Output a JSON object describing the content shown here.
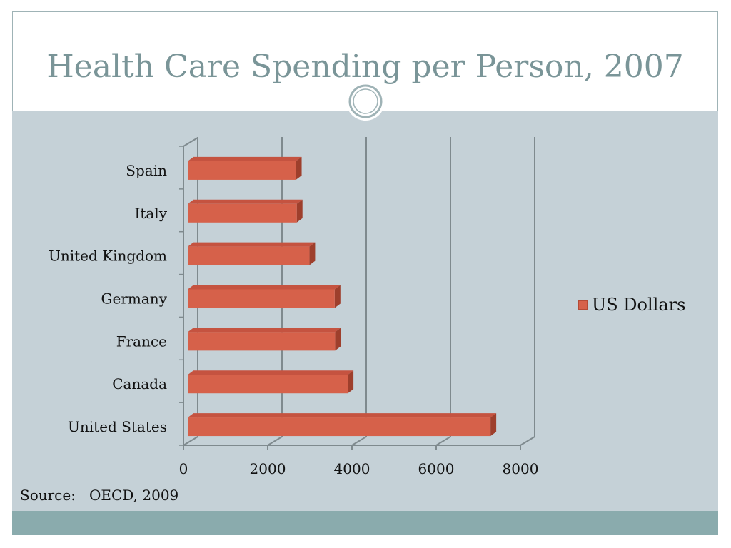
{
  "slide": {
    "title": "Health Care Spending per Person, 2007",
    "source": "Source:   OECD, 2009"
  },
  "colors": {
    "bar": "#d6614a",
    "bar_top": "#c55340",
    "bar_side": "#9e3f2c",
    "panel": "#c5d1d7",
    "title": "#7a9598",
    "band": "#8aabad",
    "gridline": "#7f8a8e"
  },
  "chart_data": {
    "type": "bar",
    "orientation": "horizontal",
    "style": "3d",
    "title": "",
    "xlabel": "",
    "ylabel": "",
    "categories": [
      "United States",
      "Canada",
      "France",
      "Germany",
      "United Kingdom",
      "Italy",
      "Spain"
    ],
    "series": [
      {
        "name": "US Dollars",
        "values": [
          7290,
          3900,
          3600,
          3590,
          2990,
          2690,
          2670
        ]
      }
    ],
    "xlim": [
      0,
      8000
    ],
    "xticks": [
      0,
      2000,
      4000,
      6000,
      8000
    ],
    "xtick_labels": [
      "0",
      "2000",
      "4000",
      "6000",
      "8000"
    ],
    "grid": "vertical major gridlines",
    "legend_position": "right"
  }
}
